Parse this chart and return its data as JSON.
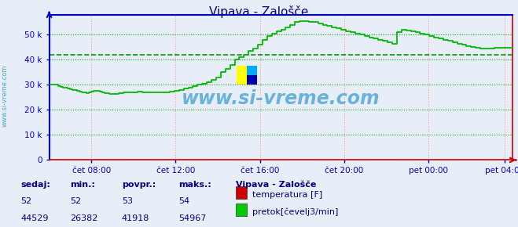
{
  "title": "Vipava - Zalošče",
  "title_color": "#000080",
  "bg_color": "#e8eef8",
  "plot_bg_color": "#e8eef8",
  "grid_color_h": "#00aa00",
  "grid_color_v": "#ff9999",
  "x_labels": [
    "čet 08:00",
    "čet 12:00",
    "čet 16:00",
    "čet 20:00",
    "pet 00:00",
    "pet 04:00"
  ],
  "x_ticks_norm": [
    0.0909,
    0.2727,
    0.4545,
    0.6364,
    0.8182,
    0.9818
  ],
  "y_ticks": [
    0,
    10000,
    20000,
    30000,
    40000,
    50000
  ],
  "y_labels": [
    "0",
    "10 k",
    "20 k",
    "30 k",
    "40 k",
    "50 k"
  ],
  "ylim": [
    0,
    58000
  ],
  "xlim": [
    0,
    1.0
  ],
  "avg_line_value": 41918,
  "avg_line_color": "#009900",
  "left_spine_color": "#0000cc",
  "bottom_spine_color": "#cc0000",
  "tick_color": "#0000cc",
  "watermark": "www.si-vreme.com",
  "watermark_color": "#3399cc",
  "sidebar_text": "www.si-vreme.com",
  "sidebar_color": "#3399bb",
  "legend_title": "Vipava - Zalošče",
  "legend_title_color": "#000080",
  "legend_items": [
    {
      "label": "temperatura [F]",
      "color": "#cc0000"
    },
    {
      "label": "pretok[čevelj3/min]",
      "color": "#00cc00"
    }
  ],
  "table_headers": [
    "sedaj:",
    "min.:",
    "povpr.:",
    "maks.:"
  ],
  "table_row1": [
    "52",
    "52",
    "53",
    "54"
  ],
  "table_row2": [
    "44529",
    "26382",
    "41918",
    "54967"
  ],
  "table_header_color": "#000080",
  "table_value_color": "#000080",
  "flow_color": "#00bb00",
  "flow_data_x": [
    0.0,
    0.005,
    0.01,
    0.015,
    0.02,
    0.025,
    0.03,
    0.035,
    0.04,
    0.045,
    0.05,
    0.055,
    0.06,
    0.065,
    0.07,
    0.075,
    0.08,
    0.085,
    0.09,
    0.095,
    0.1,
    0.105,
    0.11,
    0.115,
    0.12,
    0.125,
    0.13,
    0.135,
    0.14,
    0.15,
    0.16,
    0.17,
    0.18,
    0.19,
    0.2,
    0.21,
    0.22,
    0.23,
    0.24,
    0.25,
    0.26,
    0.27,
    0.28,
    0.29,
    0.3,
    0.31,
    0.32,
    0.33,
    0.34,
    0.35,
    0.36,
    0.37,
    0.38,
    0.39,
    0.4,
    0.41,
    0.42,
    0.43,
    0.44,
    0.45,
    0.46,
    0.47,
    0.48,
    0.49,
    0.5,
    0.51,
    0.52,
    0.53,
    0.54,
    0.55,
    0.56,
    0.57,
    0.58,
    0.59,
    0.6,
    0.61,
    0.62,
    0.63,
    0.64,
    0.65,
    0.66,
    0.67,
    0.68,
    0.69,
    0.7,
    0.71,
    0.72,
    0.73,
    0.74,
    0.75,
    0.76,
    0.77,
    0.78,
    0.79,
    0.8,
    0.81,
    0.82,
    0.83,
    0.84,
    0.85,
    0.86,
    0.87,
    0.88,
    0.89,
    0.9,
    0.91,
    0.92,
    0.93,
    0.94,
    0.95,
    0.96,
    0.97,
    0.98,
    0.99,
    1.0
  ],
  "flow_data_y": [
    30000,
    30000,
    30000,
    30000,
    29500,
    29200,
    29000,
    28800,
    28500,
    28200,
    28000,
    27800,
    27500,
    27200,
    27000,
    26900,
    26800,
    27000,
    27200,
    27500,
    27500,
    27500,
    27200,
    27000,
    26800,
    26600,
    26500,
    26500,
    26500,
    26800,
    27000,
    27000,
    27000,
    27200,
    27000,
    27000,
    27000,
    27000,
    27000,
    27000,
    27200,
    27500,
    28000,
    28500,
    29000,
    29500,
    30000,
    30500,
    31000,
    32000,
    33000,
    35000,
    36500,
    38000,
    40000,
    41000,
    42000,
    43500,
    44500,
    46000,
    48000,
    49500,
    50500,
    51500,
    52000,
    53000,
    54000,
    55000,
    55500,
    55500,
    55000,
    55000,
    54500,
    54000,
    53500,
    53000,
    52500,
    52000,
    51500,
    51000,
    50500,
    50000,
    49500,
    49000,
    48500,
    48000,
    47500,
    47000,
    46500,
    51000,
    52000,
    51800,
    51500,
    51000,
    50500,
    50000,
    49500,
    49000,
    48500,
    48000,
    47500,
    47000,
    46500,
    46000,
    45500,
    45000,
    44700,
    44500,
    44500,
    44600,
    44700,
    44800,
    44800,
    44700,
    44700
  ]
}
